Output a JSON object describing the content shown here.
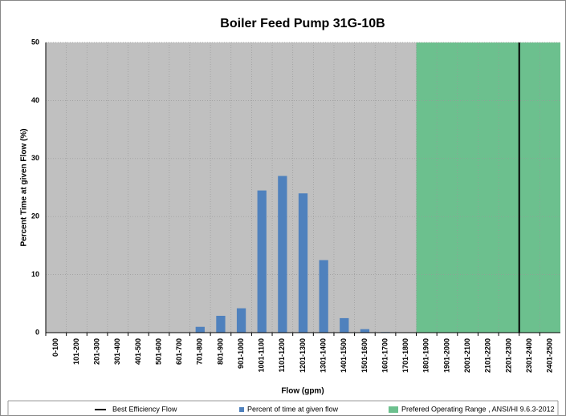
{
  "chart_data": {
    "type": "bar",
    "title": "Boiler Feed Pump 31G-10B",
    "x_label": "Flow (gpm)",
    "y_label": "Percent Time at given Flow (%)",
    "categories": [
      "0-100",
      "101-200",
      "201-300",
      "301-400",
      "401-500",
      "501-600",
      "601-700",
      "701-800",
      "801-900",
      "901-1000",
      "1001-1100",
      "1101-1200",
      "1201-1300",
      "1301-1400",
      "1401-1500",
      "1501-1600",
      "1601-1700",
      "1701-1800",
      "1801-1900",
      "1901-2000",
      "2001-2100",
      "2101-2200",
      "2201-2300",
      "2301-2400",
      "2401-2500"
    ],
    "series": [
      {
        "name": "Percent of time at given flow",
        "color": "#4f81bd",
        "values": [
          0,
          0,
          0,
          0,
          0,
          0,
          0,
          1,
          2.9,
          4.2,
          24.5,
          27,
          24,
          12.5,
          2.5,
          0.6,
          0.1,
          0,
          0,
          0,
          0,
          0,
          0,
          0,
          0
        ]
      }
    ],
    "best_efficiency": {
      "name": "Best Efficiency Flow",
      "color": "#000000",
      "between": [
        "2201-2300",
        "2301-2400"
      ]
    },
    "operating_range": {
      "name": "Prefered Operating Range , ANSI/HI 9.6.3-2012",
      "color": "#6cc08e",
      "from": "1801-1900",
      "to": "2401-2500"
    },
    "plot_background": "#c0c0c0",
    "ylim": [
      0,
      50
    ],
    "yticks": [
      0,
      10,
      20,
      30,
      40,
      50
    ],
    "grid": true
  }
}
